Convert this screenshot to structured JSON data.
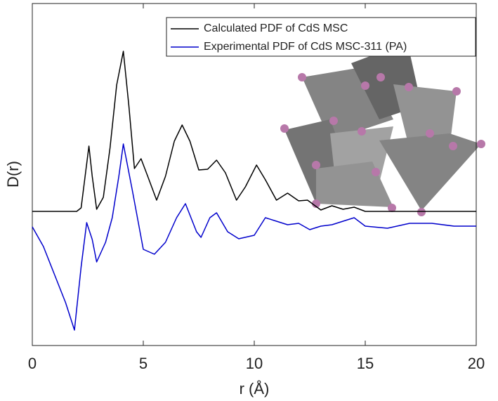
{
  "chart_data": {
    "type": "line",
    "xlabel": "r (Å)",
    "ylabel": "D(r)",
    "xlim": [
      0,
      20
    ],
    "xticks": [
      0,
      5,
      10,
      15,
      20
    ],
    "ylim": [
      -1.91,
      2.96
    ],
    "legend": "upper right",
    "series": [
      {
        "name": "Calculated PDF of CdS MSC",
        "color": "#000000",
        "x": [
          0,
          2.0,
          2.2,
          2.4,
          2.55,
          2.7,
          2.9,
          3.2,
          3.5,
          3.8,
          4.1,
          4.35,
          4.6,
          4.9,
          5.2,
          5.6,
          6.0,
          6.4,
          6.75,
          7.1,
          7.5,
          7.9,
          8.3,
          8.7,
          9.2,
          9.6,
          10.1,
          10.5,
          11.0,
          11.5,
          12.0,
          12.4,
          13.0,
          13.5,
          14.0,
          14.5,
          15.0,
          20
        ],
        "values": [
          0,
          0,
          0.05,
          0.55,
          0.93,
          0.5,
          0.03,
          0.2,
          0.9,
          1.8,
          2.28,
          1.5,
          0.61,
          0.75,
          0.5,
          0.16,
          0.5,
          1.0,
          1.23,
          1.0,
          0.59,
          0.6,
          0.73,
          0.55,
          0.16,
          0.35,
          0.66,
          0.45,
          0.16,
          0.26,
          0.15,
          0.16,
          0.02,
          0.08,
          0.03,
          0.06,
          0,
          0
        ]
      },
      {
        "name": "Experimental PDF of CdS MSC-311 (PA)",
        "color": "#0000cc",
        "x": [
          0,
          0.5,
          1.0,
          1.5,
          1.9,
          2.2,
          2.45,
          2.7,
          2.9,
          3.3,
          3.6,
          3.9,
          4.1,
          4.5,
          5.0,
          5.5,
          6.0,
          6.5,
          6.9,
          7.4,
          7.6,
          8.0,
          8.3,
          8.8,
          9.3,
          10.0,
          10.5,
          11.0,
          11.5,
          12.0,
          12.5,
          13.0,
          13.5,
          14.0,
          14.5,
          15.0,
          16.0,
          17.0,
          18.0,
          19.0,
          20.0
        ],
        "values": [
          -0.22,
          -0.5,
          -0.9,
          -1.3,
          -1.69,
          -0.79,
          -0.16,
          -0.4,
          -0.72,
          -0.44,
          -0.09,
          0.5,
          0.96,
          0.31,
          -0.54,
          -0.61,
          -0.44,
          -0.09,
          0.11,
          -0.29,
          -0.37,
          -0.09,
          -0.02,
          -0.29,
          -0.39,
          -0.34,
          -0.09,
          -0.14,
          -0.19,
          -0.17,
          -0.26,
          -0.21,
          -0.19,
          -0.14,
          -0.09,
          -0.21,
          -0.24,
          -0.17,
          -0.17,
          -0.21,
          -0.21
        ]
      }
    ]
  }
}
